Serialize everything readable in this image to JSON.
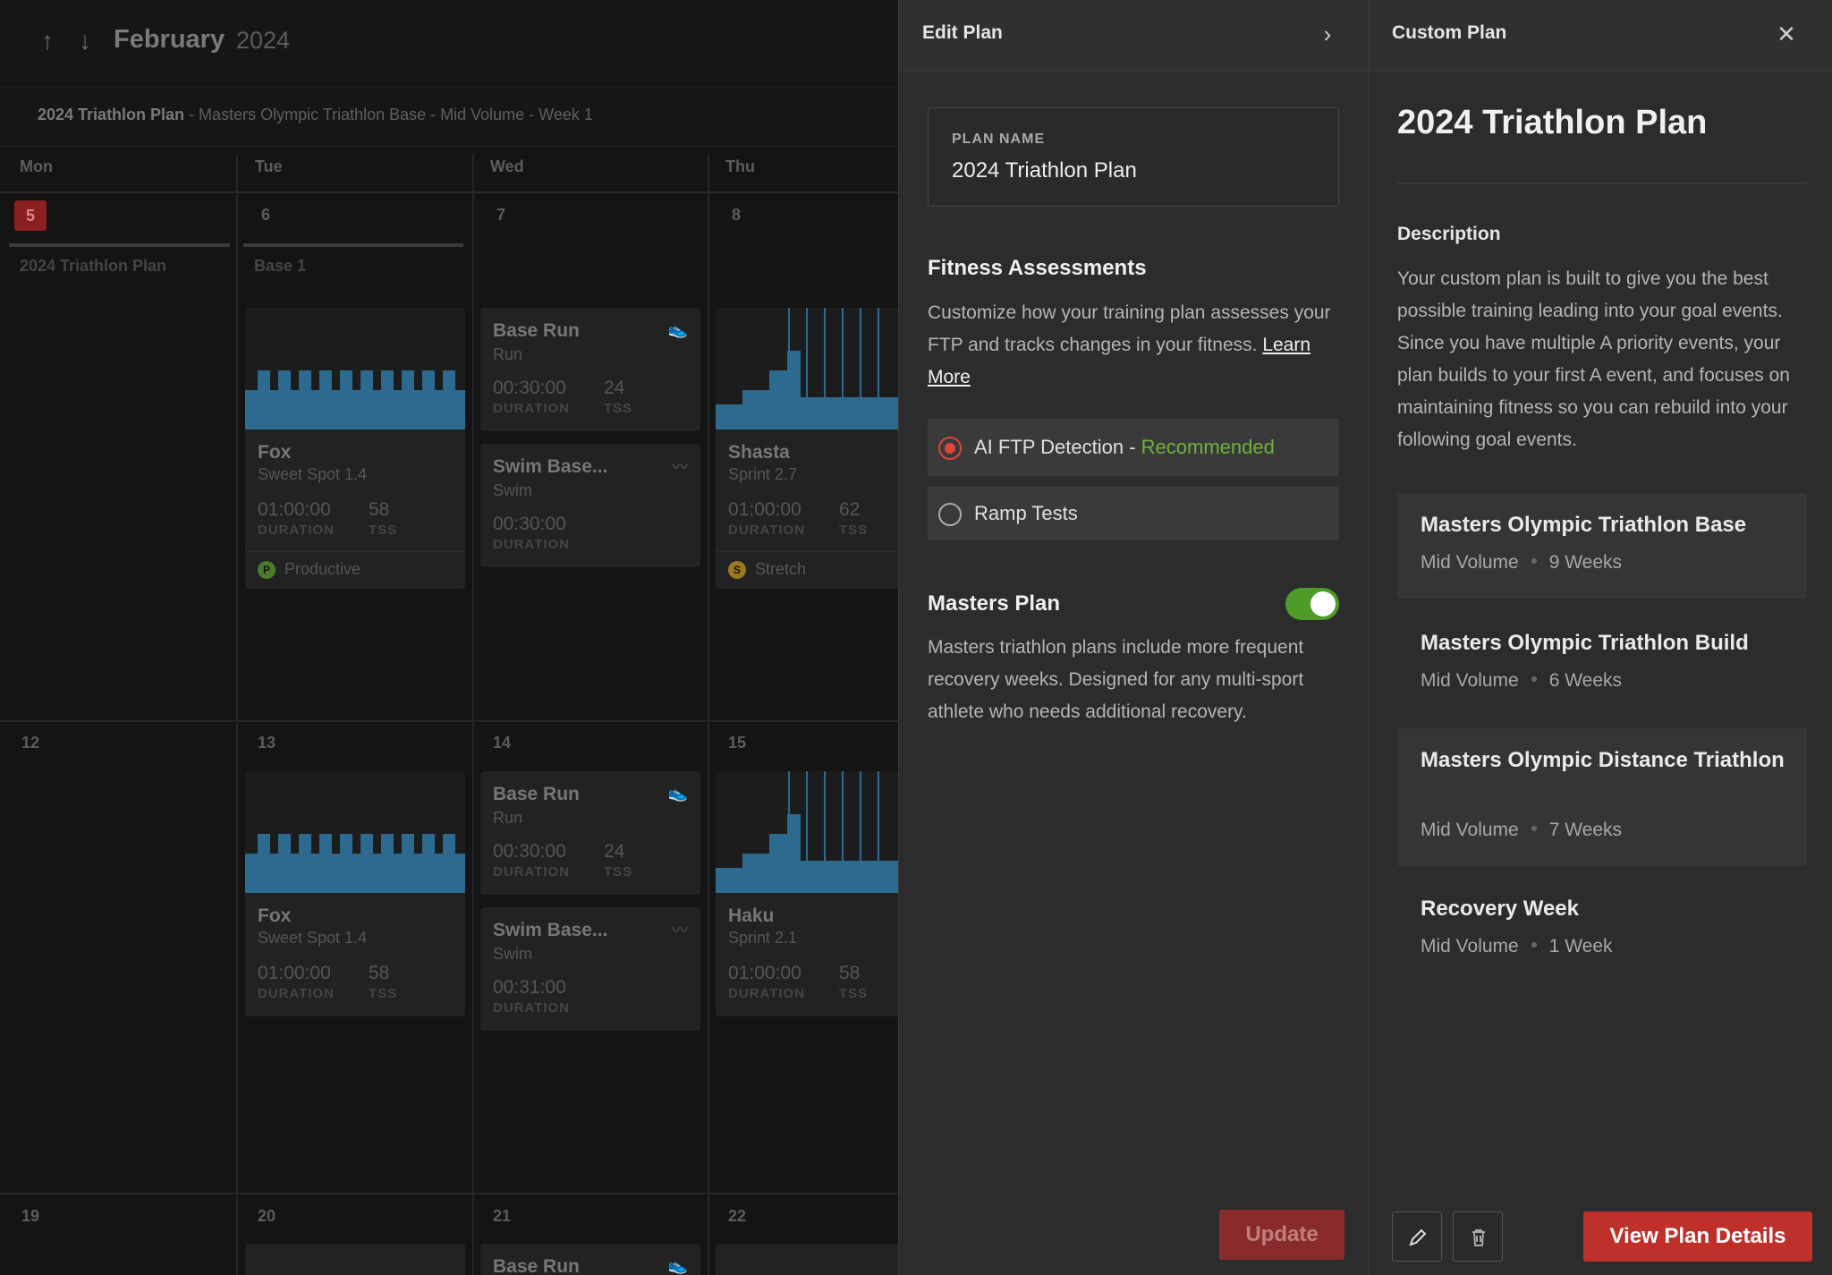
{
  "calendar": {
    "month": "February",
    "year": "2024",
    "plan_bar": {
      "plan_name": "2024 Triathlon Plan",
      "detail": " - Masters Olympic Triathlon Base - Mid Volume - Week 1"
    },
    "weekdays": [
      "Mon",
      "Tue",
      "Wed",
      "Thu"
    ],
    "week1": {
      "days": [
        "5",
        "6",
        "7",
        "8"
      ],
      "phase_mon": "2024 Triathlon Plan",
      "phase_tue": "Base 1",
      "fox": {
        "title": "Fox",
        "sub": "Sweet Spot 1.4",
        "duration": "01:00:00",
        "tss": "58",
        "foot": "Productive",
        "foot_badge": "P"
      },
      "base_run": {
        "title": "Base Run",
        "sub": "Run",
        "duration": "00:30:00",
        "tss": "24"
      },
      "swim": {
        "title": "Swim Base...",
        "sub": "Swim",
        "duration": "00:30:00"
      },
      "shasta": {
        "title": "Shasta",
        "sub": "Sprint 2.7",
        "duration": "01:00:00",
        "tss": "62",
        "foot": "Stretch",
        "foot_badge": "S"
      }
    },
    "week2": {
      "days": [
        "12",
        "13",
        "14",
        "15"
      ],
      "fox": {
        "title": "Fox",
        "sub": "Sweet Spot 1.4",
        "duration": "01:00:00",
        "tss": "58"
      },
      "base_run": {
        "title": "Base Run",
        "sub": "Run",
        "duration": "00:30:00",
        "tss": "24"
      },
      "swim": {
        "title": "Swim Base...",
        "sub": "Swim",
        "duration": "00:31:00"
      },
      "haku": {
        "title": "Haku",
        "sub": "Sprint 2.1",
        "duration": "01:00:00",
        "tss": "58"
      }
    },
    "week3": {
      "days": [
        "19",
        "20",
        "21",
        "22"
      ],
      "base_run": {
        "title": "Base Run"
      }
    },
    "labels": {
      "duration": "DURATION",
      "tss": "TSS"
    }
  },
  "edit_plan": {
    "title": "Edit Plan",
    "plan_name_label": "PLAN NAME",
    "plan_name_value": "2024 Triathlon Plan",
    "fitness_title": "Fitness Assessments",
    "fitness_body": "Customize how your training plan assesses your FTP and tracks changes in your fitness.",
    "learn_more": "Learn More",
    "option_ai": "AI FTP Detection - ",
    "option_ai_tag": "Recommended",
    "option_ramp": "Ramp Tests",
    "masters_title": "Masters Plan",
    "masters_enabled": true,
    "masters_body": "Masters triathlon plans include more frequent recovery weeks. Designed for any multi-sport athlete who needs additional recovery.",
    "update_label": "Update"
  },
  "custom_plan": {
    "header": "Custom Plan",
    "title": "2024 Triathlon Plan",
    "description_heading": "Description",
    "description": "Your custom plan is built to give you the best possible training leading into your goal events. Since you have multiple A priority events, your plan builds to your first A event, and focuses on maintaining fitness so you can rebuild into your following goal events.",
    "phases": [
      {
        "name": "Masters Olympic Triathlon Base",
        "volume": "Mid Volume",
        "length": "9 Weeks"
      },
      {
        "name": "Masters Olympic Triathlon Build",
        "volume": "Mid Volume",
        "length": "6 Weeks"
      },
      {
        "name": "Masters Olympic Distance Triathlon",
        "volume": "Mid Volume",
        "length": "7 Weeks"
      },
      {
        "name": "Recovery Week",
        "volume": "Mid Volume",
        "length": "1 Week"
      }
    ],
    "view_label": "View Plan Details"
  },
  "colors": {
    "accent_red": "#c0302a",
    "recommended_green": "#6fb33f",
    "toggle_green": "#4f9b2a",
    "workout_blue": "#2d6a8f"
  },
  "icons": [
    "arrow-up-icon",
    "arrow-down-icon",
    "chevron-right-icon",
    "close-icon",
    "run-shoe-icon",
    "swim-waves-icon",
    "pencil-icon",
    "trash-icon"
  ]
}
